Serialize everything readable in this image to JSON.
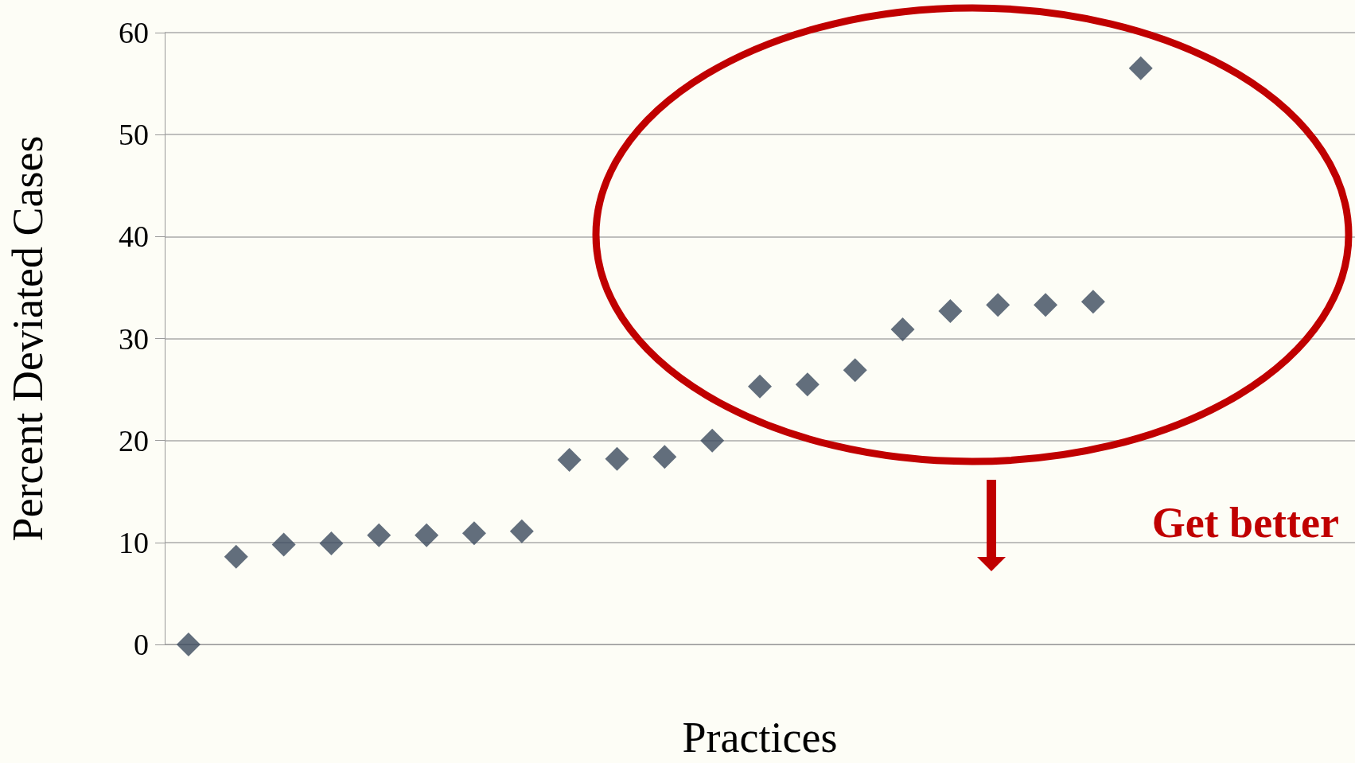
{
  "chart_data": {
    "type": "scatter",
    "xlabel": "Practices",
    "ylabel": "Percent Deviated Cases",
    "categories": [
      null,
      null,
      null,
      null,
      null,
      null,
      null,
      null,
      null,
      null,
      null,
      null,
      null,
      null,
      null,
      null,
      null,
      null,
      null,
      null,
      null,
      null,
      null,
      null,
      null
    ],
    "values": [
      0,
      8.6,
      9.8,
      9.9,
      10.7,
      10.7,
      10.9,
      11.1,
      18.1,
      18.2,
      18.4,
      20,
      25.3,
      25.5,
      26.9,
      30.9,
      32.7,
      33.3,
      33.3,
      33.6,
      56.5,
      null,
      null,
      null,
      null
    ],
    "color": "#3b4a5e",
    "marker": "diamond",
    "ylim": [
      0,
      60
    ],
    "yticks": [
      0,
      10,
      20,
      30,
      40,
      50,
      60
    ],
    "grid": "y",
    "annotations": [
      "Get better"
    ]
  }
}
